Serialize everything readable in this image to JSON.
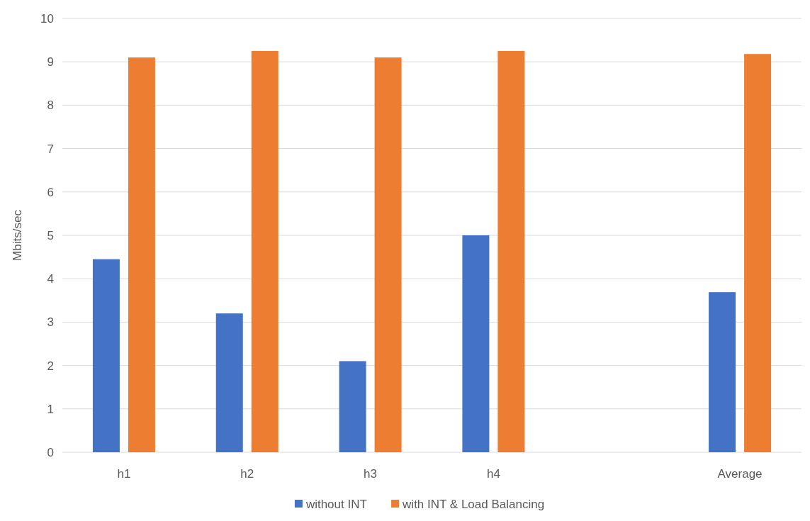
{
  "chart_data": {
    "type": "bar",
    "ylabel": "Mbits/sec",
    "categories": [
      "h1",
      "h2",
      "h3",
      "h4",
      null,
      "Average"
    ],
    "series": [
      {
        "name": "without INT",
        "color": "#4472c4",
        "values": [
          4.45,
          3.2,
          2.1,
          5.0,
          null,
          3.69
        ]
      },
      {
        "name": "with INT & Load Balancing",
        "color": "#ed7d31",
        "values": [
          9.1,
          9.25,
          9.1,
          9.25,
          null,
          9.18
        ]
      }
    ],
    "ylim": [
      0,
      10
    ],
    "yticks": [
      0,
      1,
      2,
      3,
      4,
      5,
      6,
      7,
      8,
      9,
      10
    ],
    "grid": "y",
    "legend": "bottom"
  }
}
